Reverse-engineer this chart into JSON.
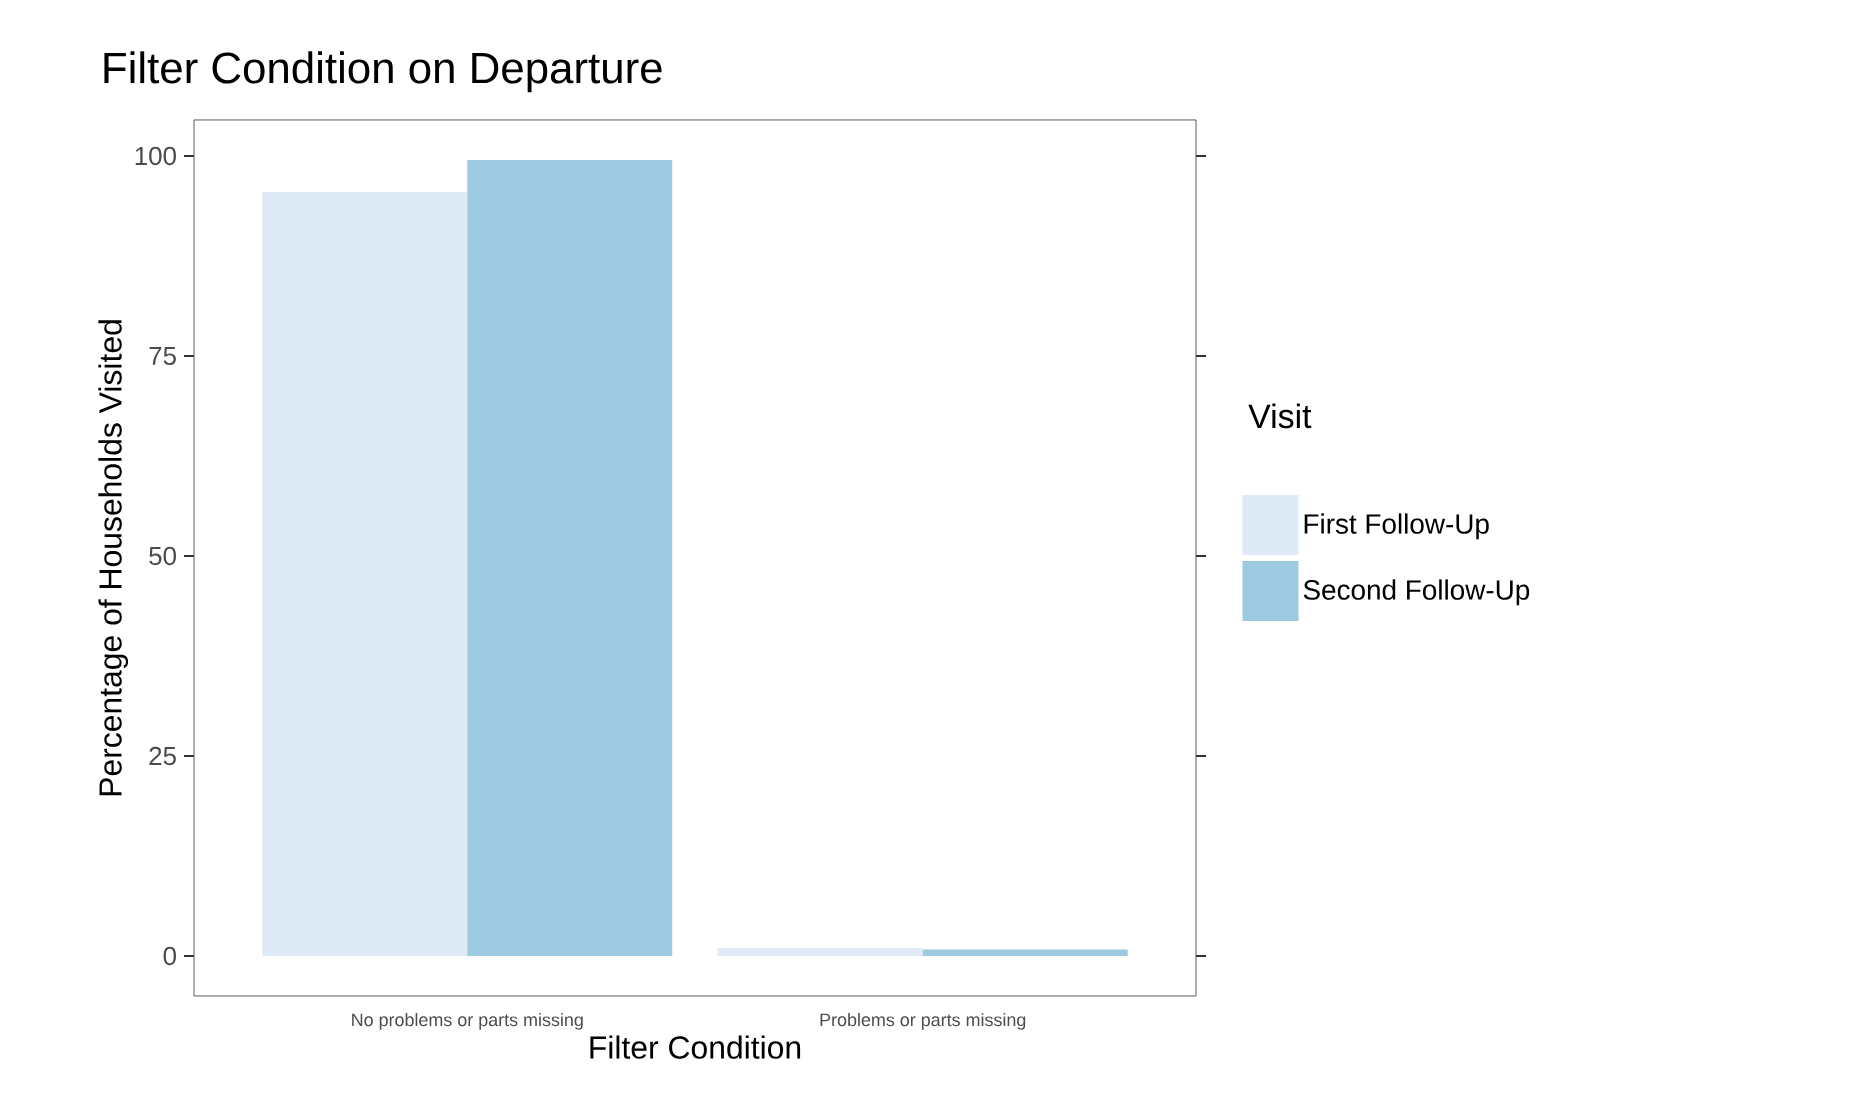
{
  "chart_data": {
    "type": "bar",
    "title": "Filter Condition on Departure",
    "xlabel": "Filter Condition",
    "ylabel": "Percentage of Households Visited",
    "legend_title": "Visit",
    "categories": [
      "No problems or parts missing",
      "Problems or parts missing"
    ],
    "series": [
      {
        "name": "First Follow-Up",
        "color": "#deebf7",
        "values": [
          95.5,
          1
        ]
      },
      {
        "name": "Second Follow-Up",
        "color": "#9ecae1",
        "values": [
          99.5,
          0.8
        ]
      }
    ],
    "ylim": [
      -5,
      104.5
    ],
    "yticks": [
      0,
      25,
      50,
      75,
      100
    ],
    "grid": false,
    "legend": "right"
  }
}
